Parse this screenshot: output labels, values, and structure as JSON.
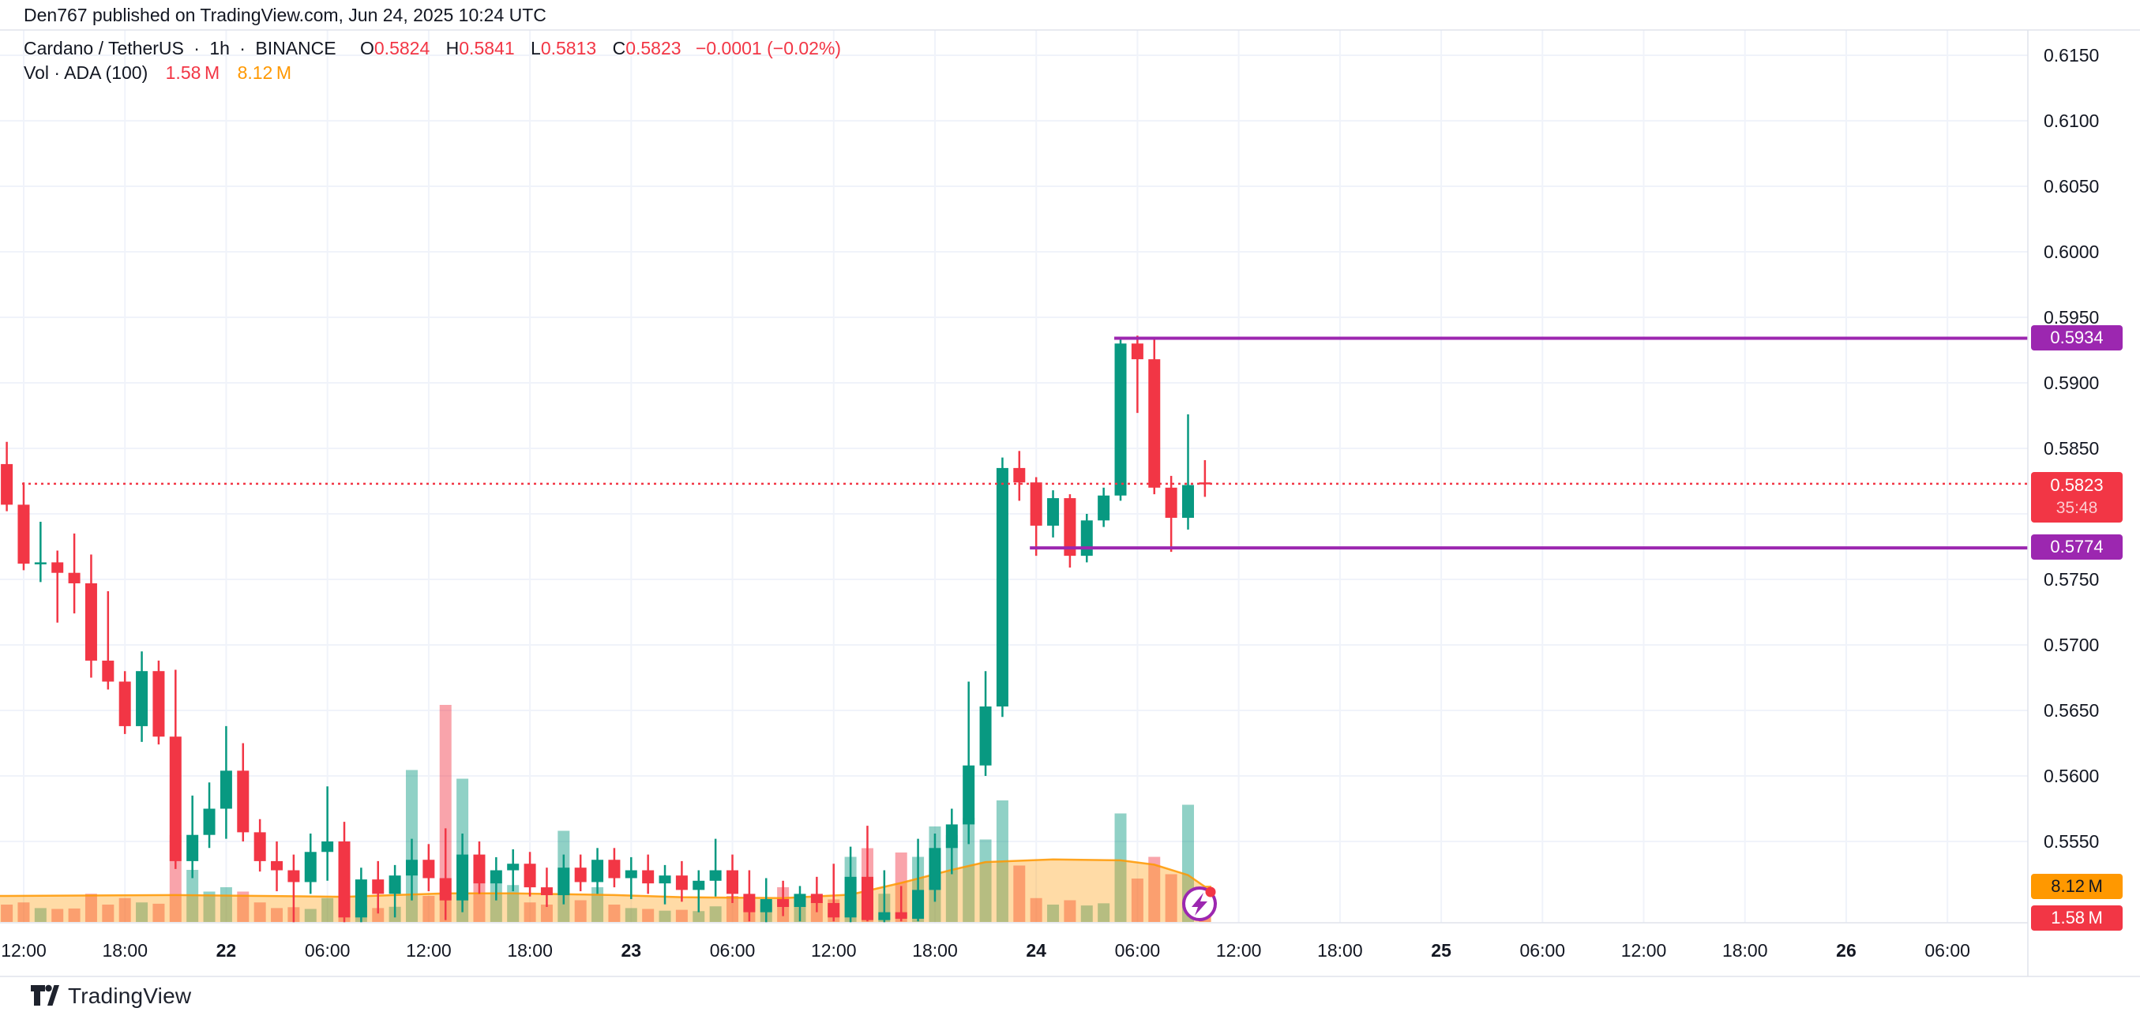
{
  "header": {
    "published_line": "Den767 published on TradingView.com, Jun 24, 2025 10:24 UTC"
  },
  "legend": {
    "row1": {
      "symbol": "Cardano / TetherUS",
      "sep1": "·",
      "interval": "1h",
      "sep2": "·",
      "exchange": "BINANCE",
      "o_key": "O",
      "o_val": "0.5824",
      "h_key": "H",
      "h_val": "0.5841",
      "l_key": "L",
      "l_val": "0.5813",
      "c_key": "C",
      "c_val": "0.5823",
      "change": "−0.0001 (−0.02%)"
    },
    "row2": {
      "label": "Vol · ADA (100)",
      "current": "1.58 M",
      "ma": "8.12 M"
    }
  },
  "footer": {
    "logo_text": "TradingView"
  },
  "chart_data": {
    "type": "candlestick+volume",
    "symbol": "Cardano / TetherUS",
    "exchange": "BINANCE",
    "interval": "1h",
    "first_candle_time": "Jun 21, 2025 11:00 UTC",
    "last_candle_time": "Jun 24, 2025 10:00 UTC",
    "timezone": "UTC",
    "price_ticks": [
      "0.6150",
      "0.6100",
      "0.6050",
      "0.6000",
      "0.5950",
      "0.5900",
      "0.5850",
      "0.5800",
      "0.5750",
      "0.5700",
      "0.5650",
      "0.5600",
      "0.5550"
    ],
    "time_ticks": [
      {
        "label": "12:00",
        "bold": false
      },
      {
        "label": "18:00",
        "bold": false
      },
      {
        "label": "22",
        "bold": true
      },
      {
        "label": "06:00",
        "bold": false
      },
      {
        "label": "12:00",
        "bold": false
      },
      {
        "label": "18:00",
        "bold": false
      },
      {
        "label": "23",
        "bold": true
      },
      {
        "label": "06:00",
        "bold": false
      },
      {
        "label": "12:00",
        "bold": false
      },
      {
        "label": "18:00",
        "bold": false
      },
      {
        "label": "24",
        "bold": true
      },
      {
        "label": "06:00",
        "bold": false
      },
      {
        "label": "12:00",
        "bold": false
      },
      {
        "label": "18:00",
        "bold": false
      },
      {
        "label": "25",
        "bold": true
      },
      {
        "label": "06:00",
        "bold": false
      },
      {
        "label": "12:00",
        "bold": false
      },
      {
        "label": "18:00",
        "bold": false
      },
      {
        "label": "26",
        "bold": true
      },
      {
        "label": "06:00",
        "bold": false
      }
    ],
    "ohlc_current": {
      "o": 0.5824,
      "h": 0.5841,
      "l": 0.5813,
      "c": 0.5823,
      "change": "−0.0001",
      "change_pct": "−0.02%"
    },
    "current_price": {
      "value": 0.5823,
      "label": "0.5823",
      "countdown": "35:48"
    },
    "levels": [
      {
        "value": 0.5934,
        "label": "0.5934",
        "start_index": 66
      },
      {
        "value": 0.5774,
        "label": "0.5774",
        "start_index": 61
      }
    ],
    "volume_axis": {
      "ma_label": "8.12 M",
      "ma_value": 8.12,
      "current_label": "1.58 M",
      "current_value": 1.58
    },
    "vol_ma": [
      [
        0,
        6.0
      ],
      [
        10,
        6.2
      ],
      [
        20,
        5.8
      ],
      [
        26,
        6.6
      ],
      [
        30,
        6.6
      ],
      [
        36,
        6.2
      ],
      [
        40,
        5.7
      ],
      [
        46,
        5.5
      ],
      [
        50,
        6.3
      ],
      [
        53,
        9.0
      ],
      [
        56,
        12.0
      ],
      [
        58,
        13.8
      ],
      [
        62,
        14.4
      ],
      [
        66,
        14.2
      ],
      [
        68,
        13.2
      ],
      [
        70,
        10.8
      ],
      [
        71,
        8.12
      ]
    ],
    "candles": [
      [
        0.5838,
        0.5855,
        0.5802,
        0.5807,
        4.0
      ],
      [
        0.5807,
        0.5824,
        0.5757,
        0.5762,
        4.5
      ],
      [
        0.5762,
        0.5794,
        0.5748,
        0.5763,
        3.2
      ],
      [
        0.5763,
        0.5772,
        0.5717,
        0.5755,
        3.0
      ],
      [
        0.5755,
        0.5785,
        0.5724,
        0.5747,
        3.1
      ],
      [
        0.5747,
        0.5769,
        0.5675,
        0.5688,
        6.5
      ],
      [
        0.5688,
        0.5741,
        0.5666,
        0.5672,
        4.0
      ],
      [
        0.5672,
        0.568,
        0.5632,
        0.5638,
        5.5
      ],
      [
        0.5638,
        0.5695,
        0.5626,
        0.568,
        4.5
      ],
      [
        0.568,
        0.5688,
        0.5624,
        0.563,
        4.2
      ],
      [
        0.563,
        0.5681,
        0.5529,
        0.5535,
        20
      ],
      [
        0.5535,
        0.5585,
        0.5522,
        0.5555,
        12
      ],
      [
        0.5555,
        0.5595,
        0.5545,
        0.5575,
        7
      ],
      [
        0.5575,
        0.5638,
        0.5552,
        0.5604,
        8
      ],
      [
        0.5604,
        0.5625,
        0.555,
        0.5557,
        7
      ],
      [
        0.5557,
        0.5567,
        0.5527,
        0.5535,
        4.5
      ],
      [
        0.5535,
        0.555,
        0.5512,
        0.5528,
        3.2
      ],
      [
        0.5528,
        0.554,
        0.5488,
        0.5519,
        3.4
      ],
      [
        0.5519,
        0.5556,
        0.551,
        0.5542,
        3.0
      ],
      [
        0.5542,
        0.5592,
        0.552,
        0.555,
        5.5
      ],
      [
        0.555,
        0.5565,
        0.5488,
        0.5492,
        5.0
      ],
      [
        0.5492,
        0.553,
        0.5488,
        0.5521,
        3.8
      ],
      [
        0.5521,
        0.5535,
        0.5495,
        0.551,
        3.2
      ],
      [
        0.551,
        0.5532,
        0.5492,
        0.5524,
        3.5
      ],
      [
        0.5524,
        0.5552,
        0.5505,
        0.5536,
        35
      ],
      [
        0.5536,
        0.5548,
        0.5512,
        0.5522,
        6
      ],
      [
        0.5522,
        0.556,
        0.549,
        0.5505,
        50
      ],
      [
        0.5505,
        0.5556,
        0.5496,
        0.554,
        33
      ],
      [
        0.554,
        0.555,
        0.551,
        0.5518,
        11
      ],
      [
        0.5518,
        0.5538,
        0.5505,
        0.5528,
        9
      ],
      [
        0.5528,
        0.5544,
        0.5512,
        0.5533,
        8.5
      ],
      [
        0.5533,
        0.5542,
        0.5508,
        0.5515,
        4.5
      ],
      [
        0.5515,
        0.553,
        0.55,
        0.5509,
        4.0
      ],
      [
        0.5509,
        0.554,
        0.5502,
        0.553,
        21
      ],
      [
        0.553,
        0.554,
        0.5512,
        0.5519,
        5
      ],
      [
        0.5519,
        0.5545,
        0.551,
        0.5536,
        8
      ],
      [
        0.5536,
        0.5545,
        0.5515,
        0.5522,
        4
      ],
      [
        0.5522,
        0.5538,
        0.5506,
        0.5528,
        3.2
      ],
      [
        0.5528,
        0.554,
        0.551,
        0.5518,
        3.0
      ],
      [
        0.5518,
        0.5532,
        0.5502,
        0.5524,
        2.6
      ],
      [
        0.5524,
        0.5535,
        0.5504,
        0.5513,
        2.8
      ],
      [
        0.5513,
        0.5528,
        0.5496,
        0.552,
        2.5
      ],
      [
        0.552,
        0.5552,
        0.5508,
        0.5528,
        3.6
      ],
      [
        0.5528,
        0.554,
        0.5503,
        0.551,
        6
      ],
      [
        0.551,
        0.5528,
        0.5489,
        0.5496,
        4.8
      ],
      [
        0.5496,
        0.5522,
        0.5488,
        0.5506,
        4.2
      ],
      [
        0.5506,
        0.552,
        0.5493,
        0.55,
        8
      ],
      [
        0.55,
        0.5516,
        0.5489,
        0.551,
        3.6
      ],
      [
        0.551,
        0.5523,
        0.5496,
        0.5503,
        4.6
      ],
      [
        0.5503,
        0.5533,
        0.5489,
        0.5492,
        5.2
      ],
      [
        0.5492,
        0.5546,
        0.5488,
        0.5523,
        15
      ],
      [
        0.5523,
        0.5562,
        0.5489,
        0.549,
        17
      ],
      [
        0.549,
        0.5528,
        0.5488,
        0.5496,
        6.5
      ],
      [
        0.5496,
        0.5516,
        0.5489,
        0.5491,
        16
      ],
      [
        0.5491,
        0.5552,
        0.5489,
        0.5513,
        15
      ],
      [
        0.5513,
        0.5556,
        0.5504,
        0.5545,
        22
      ],
      [
        0.5545,
        0.5575,
        0.5525,
        0.5563,
        20
      ],
      [
        0.5563,
        0.5672,
        0.5548,
        0.5608,
        24
      ],
      [
        0.5608,
        0.568,
        0.56,
        0.5653,
        19
      ],
      [
        0.5653,
        0.5843,
        0.5645,
        0.5835,
        28
      ],
      [
        0.5835,
        0.5848,
        0.581,
        0.5824,
        13
      ],
      [
        0.5824,
        0.5828,
        0.5768,
        0.5791,
        5.5
      ],
      [
        0.5791,
        0.5818,
        0.5782,
        0.5812,
        4.0
      ],
      [
        0.5812,
        0.5815,
        0.5759,
        0.5768,
        5.0
      ],
      [
        0.5768,
        0.58,
        0.5763,
        0.5795,
        3.8
      ],
      [
        0.5795,
        0.582,
        0.579,
        0.5814,
        4.3
      ],
      [
        0.5814,
        0.5934,
        0.581,
        0.593,
        25
      ],
      [
        0.593,
        0.5936,
        0.5877,
        0.5918,
        10
      ],
      [
        0.5918,
        0.5933,
        0.5815,
        0.582,
        15
      ],
      [
        0.582,
        0.5829,
        0.5771,
        0.5797,
        11
      ],
      [
        0.5797,
        0.5876,
        0.5788,
        0.5822,
        27
      ],
      [
        0.5824,
        0.5841,
        0.5813,
        0.5823,
        1.58
      ]
    ],
    "colors": {
      "up": "#089981",
      "down": "#f23645",
      "vol_up": "rgba(8,153,129,0.45)",
      "vol_down": "rgba(242,54,69,0.45)",
      "vol_ma_fill": "rgba(255,152,0,0.35)",
      "vol_ma_line": "rgba(255,152,0,0.85)",
      "level": "#9c27b0",
      "grid": "#f0f3fa",
      "border": "#e0e3eb",
      "text": "#131722",
      "price_line": "#f23645",
      "badge_orange": "#ff9800"
    },
    "legend_note": "hourly candles from Jun 21 2025 11:00 UTC to Jun 24 2025 10:00 UTC, values [open,high,low,close,volume_millions]"
  }
}
